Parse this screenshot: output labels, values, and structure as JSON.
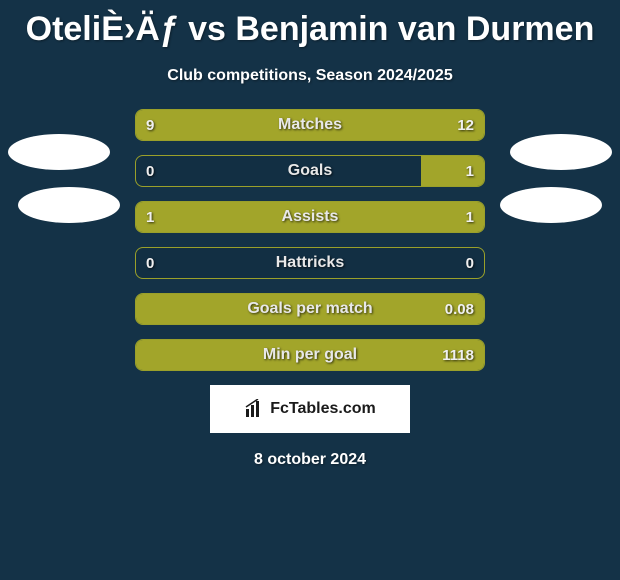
{
  "header": {
    "title": "OteliÈ›Äƒ vs Benjamin van Durmen",
    "subtitle": "Club competitions, Season 2024/2025"
  },
  "chart": {
    "type": "comparison-bar",
    "bar_border_color": "#9aa02a",
    "bar_fill_color": "#a2a52a",
    "background_color": "#143247",
    "text_color": "#ffffff",
    "rows": [
      {
        "label": "Matches",
        "left_val": "9",
        "right_val": "12",
        "left_pct": 40,
        "right_pct": 60
      },
      {
        "label": "Goals",
        "left_val": "0",
        "right_val": "1",
        "left_pct": 0,
        "right_pct": 18
      },
      {
        "label": "Assists",
        "left_val": "1",
        "right_val": "1",
        "left_pct": 50,
        "right_pct": 50
      },
      {
        "label": "Hattricks",
        "left_val": "0",
        "right_val": "0",
        "left_pct": 0,
        "right_pct": 0
      },
      {
        "label": "Goals per match",
        "left_val": "",
        "right_val": "0.08",
        "left_pct": 0,
        "right_pct": 100
      },
      {
        "label": "Min per goal",
        "left_val": "",
        "right_val": "1118",
        "left_pct": 0,
        "right_pct": 100
      }
    ]
  },
  "logo": {
    "text": "FcTables.com"
  },
  "footer": {
    "date": "8 october 2024"
  }
}
